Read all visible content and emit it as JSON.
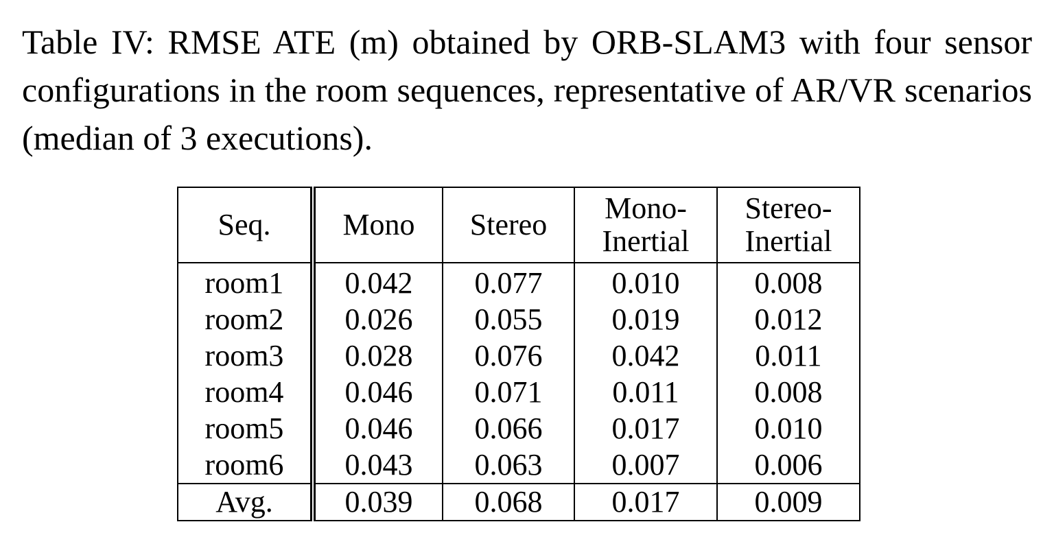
{
  "caption": {
    "line1": "Table IV: RMSE ATE (m) obtained by ORB-SLAM3 with four",
    "line2": "sensor configurations in the room sequences, representative of",
    "line3": "AR/VR scenarios (median of 3 executions)."
  },
  "table": {
    "headers": {
      "seq": "Seq.",
      "mono": "Mono",
      "stereo": "Stereo",
      "mono_inertial_a": "Mono-",
      "mono_inertial_b": "Inertial",
      "stereo_inertial_a": "Stereo-",
      "stereo_inertial_b": "Inertial"
    },
    "rows": [
      {
        "seq": "room1",
        "mono": "0.042",
        "stereo": "0.077",
        "mono_inertial": "0.010",
        "stereo_inertial": "0.008"
      },
      {
        "seq": "room2",
        "mono": "0.026",
        "stereo": "0.055",
        "mono_inertial": "0.019",
        "stereo_inertial": "0.012"
      },
      {
        "seq": "room3",
        "mono": "0.028",
        "stereo": "0.076",
        "mono_inertial": "0.042",
        "stereo_inertial": "0.011"
      },
      {
        "seq": "room4",
        "mono": "0.046",
        "stereo": "0.071",
        "mono_inertial": "0.011",
        "stereo_inertial": "0.008"
      },
      {
        "seq": "room5",
        "mono": "0.046",
        "stereo": "0.066",
        "mono_inertial": "0.017",
        "stereo_inertial": "0.010"
      },
      {
        "seq": "room6",
        "mono": "0.043",
        "stereo": "0.063",
        "mono_inertial": "0.007",
        "stereo_inertial": "0.006"
      }
    ],
    "avg": {
      "seq": "Avg.",
      "mono": "0.039",
      "stereo": "0.068",
      "mono_inertial": "0.017",
      "stereo_inertial": "0.009"
    }
  }
}
